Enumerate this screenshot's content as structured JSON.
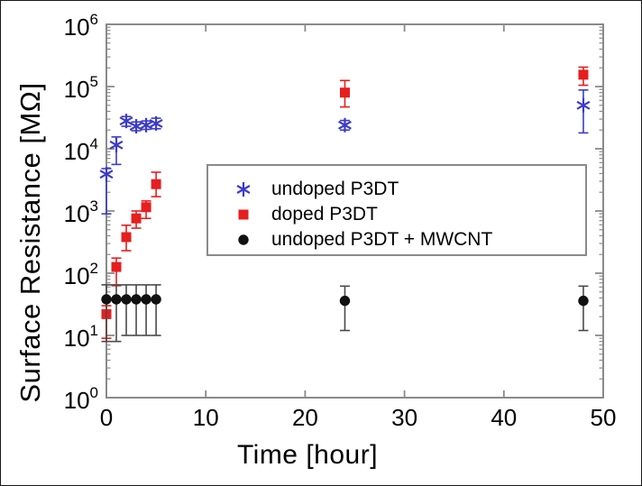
{
  "figure": {
    "background": "#ffffff",
    "frame_color": "#8a8a8a",
    "text_color": "#000000"
  },
  "chart_data": {
    "type": "scatter",
    "title": "",
    "xlabel": "Time [hour]",
    "ylabel": "Surface Resistance [MΩ]",
    "grid": false,
    "x_axis": {
      "min": 0,
      "max": 50,
      "ticks": [
        0,
        10,
        20,
        30,
        40,
        50
      ]
    },
    "y_axis": {
      "scale": "log",
      "min_exp": 0,
      "max_exp": 6,
      "tick_base": "10",
      "tick_exponents": [
        0,
        1,
        2,
        3,
        4,
        5,
        6
      ]
    },
    "legend_position": "inside-middle-right",
    "series": [
      {
        "name": "undoped P3DT",
        "marker": "asterisk",
        "color": "#3b3bc9",
        "error_color": "#3b3bc9",
        "points": [
          {
            "x": 0,
            "y": 3900,
            "lo": 900,
            "hi": 4800
          },
          {
            "x": 1,
            "y": 11500,
            "lo": 5600,
            "hi": 15500
          },
          {
            "x": 2,
            "y": 28000,
            "lo": 23000,
            "hi": 33000
          },
          {
            "x": 3,
            "y": 23000,
            "lo": 19500,
            "hi": 27000
          },
          {
            "x": 4,
            "y": 24000,
            "lo": 20500,
            "hi": 28000
          },
          {
            "x": 5,
            "y": 25500,
            "lo": 21000,
            "hi": 31000
          },
          {
            "x": 24,
            "y": 24000,
            "lo": 20000,
            "hi": 28500
          },
          {
            "x": 48,
            "y": 50000,
            "lo": 18000,
            "hi": 88000
          }
        ]
      },
      {
        "name": "doped P3DT",
        "marker": "square",
        "color": "#e61e1e",
        "error_color": "#e61e1e",
        "points": [
          {
            "x": 0,
            "y": 22,
            "lo": 9,
            "hi": 30
          },
          {
            "x": 1,
            "y": 126,
            "lo": 63,
            "hi": 175
          },
          {
            "x": 2,
            "y": 380,
            "lo": 230,
            "hi": 590
          },
          {
            "x": 3,
            "y": 760,
            "lo": 530,
            "hi": 1000
          },
          {
            "x": 4,
            "y": 1150,
            "lo": 760,
            "hi": 1450
          },
          {
            "x": 5,
            "y": 2700,
            "lo": 1700,
            "hi": 4200
          },
          {
            "x": 24,
            "y": 80000,
            "lo": 47000,
            "hi": 125000
          },
          {
            "x": 48,
            "y": 155000,
            "lo": 105000,
            "hi": 205000
          }
        ]
      },
      {
        "name": "undoped P3DT + MWCNT",
        "marker": "circle",
        "color": "#111111",
        "error_color": "#4a4a4a",
        "points": [
          {
            "x": 0,
            "y": 38,
            "lo": 8,
            "hi": 65
          },
          {
            "x": 1,
            "y": 38,
            "lo": 8,
            "hi": 65
          },
          {
            "x": 2,
            "y": 38,
            "lo": 10,
            "hi": 65
          },
          {
            "x": 3,
            "y": 38,
            "lo": 10,
            "hi": 65
          },
          {
            "x": 4,
            "y": 38,
            "lo": 10,
            "hi": 65
          },
          {
            "x": 5,
            "y": 38,
            "lo": 10,
            "hi": 65
          },
          {
            "x": 24,
            "y": 36,
            "lo": 12,
            "hi": 62
          },
          {
            "x": 48,
            "y": 36,
            "lo": 12,
            "hi": 62
          }
        ]
      }
    ]
  }
}
